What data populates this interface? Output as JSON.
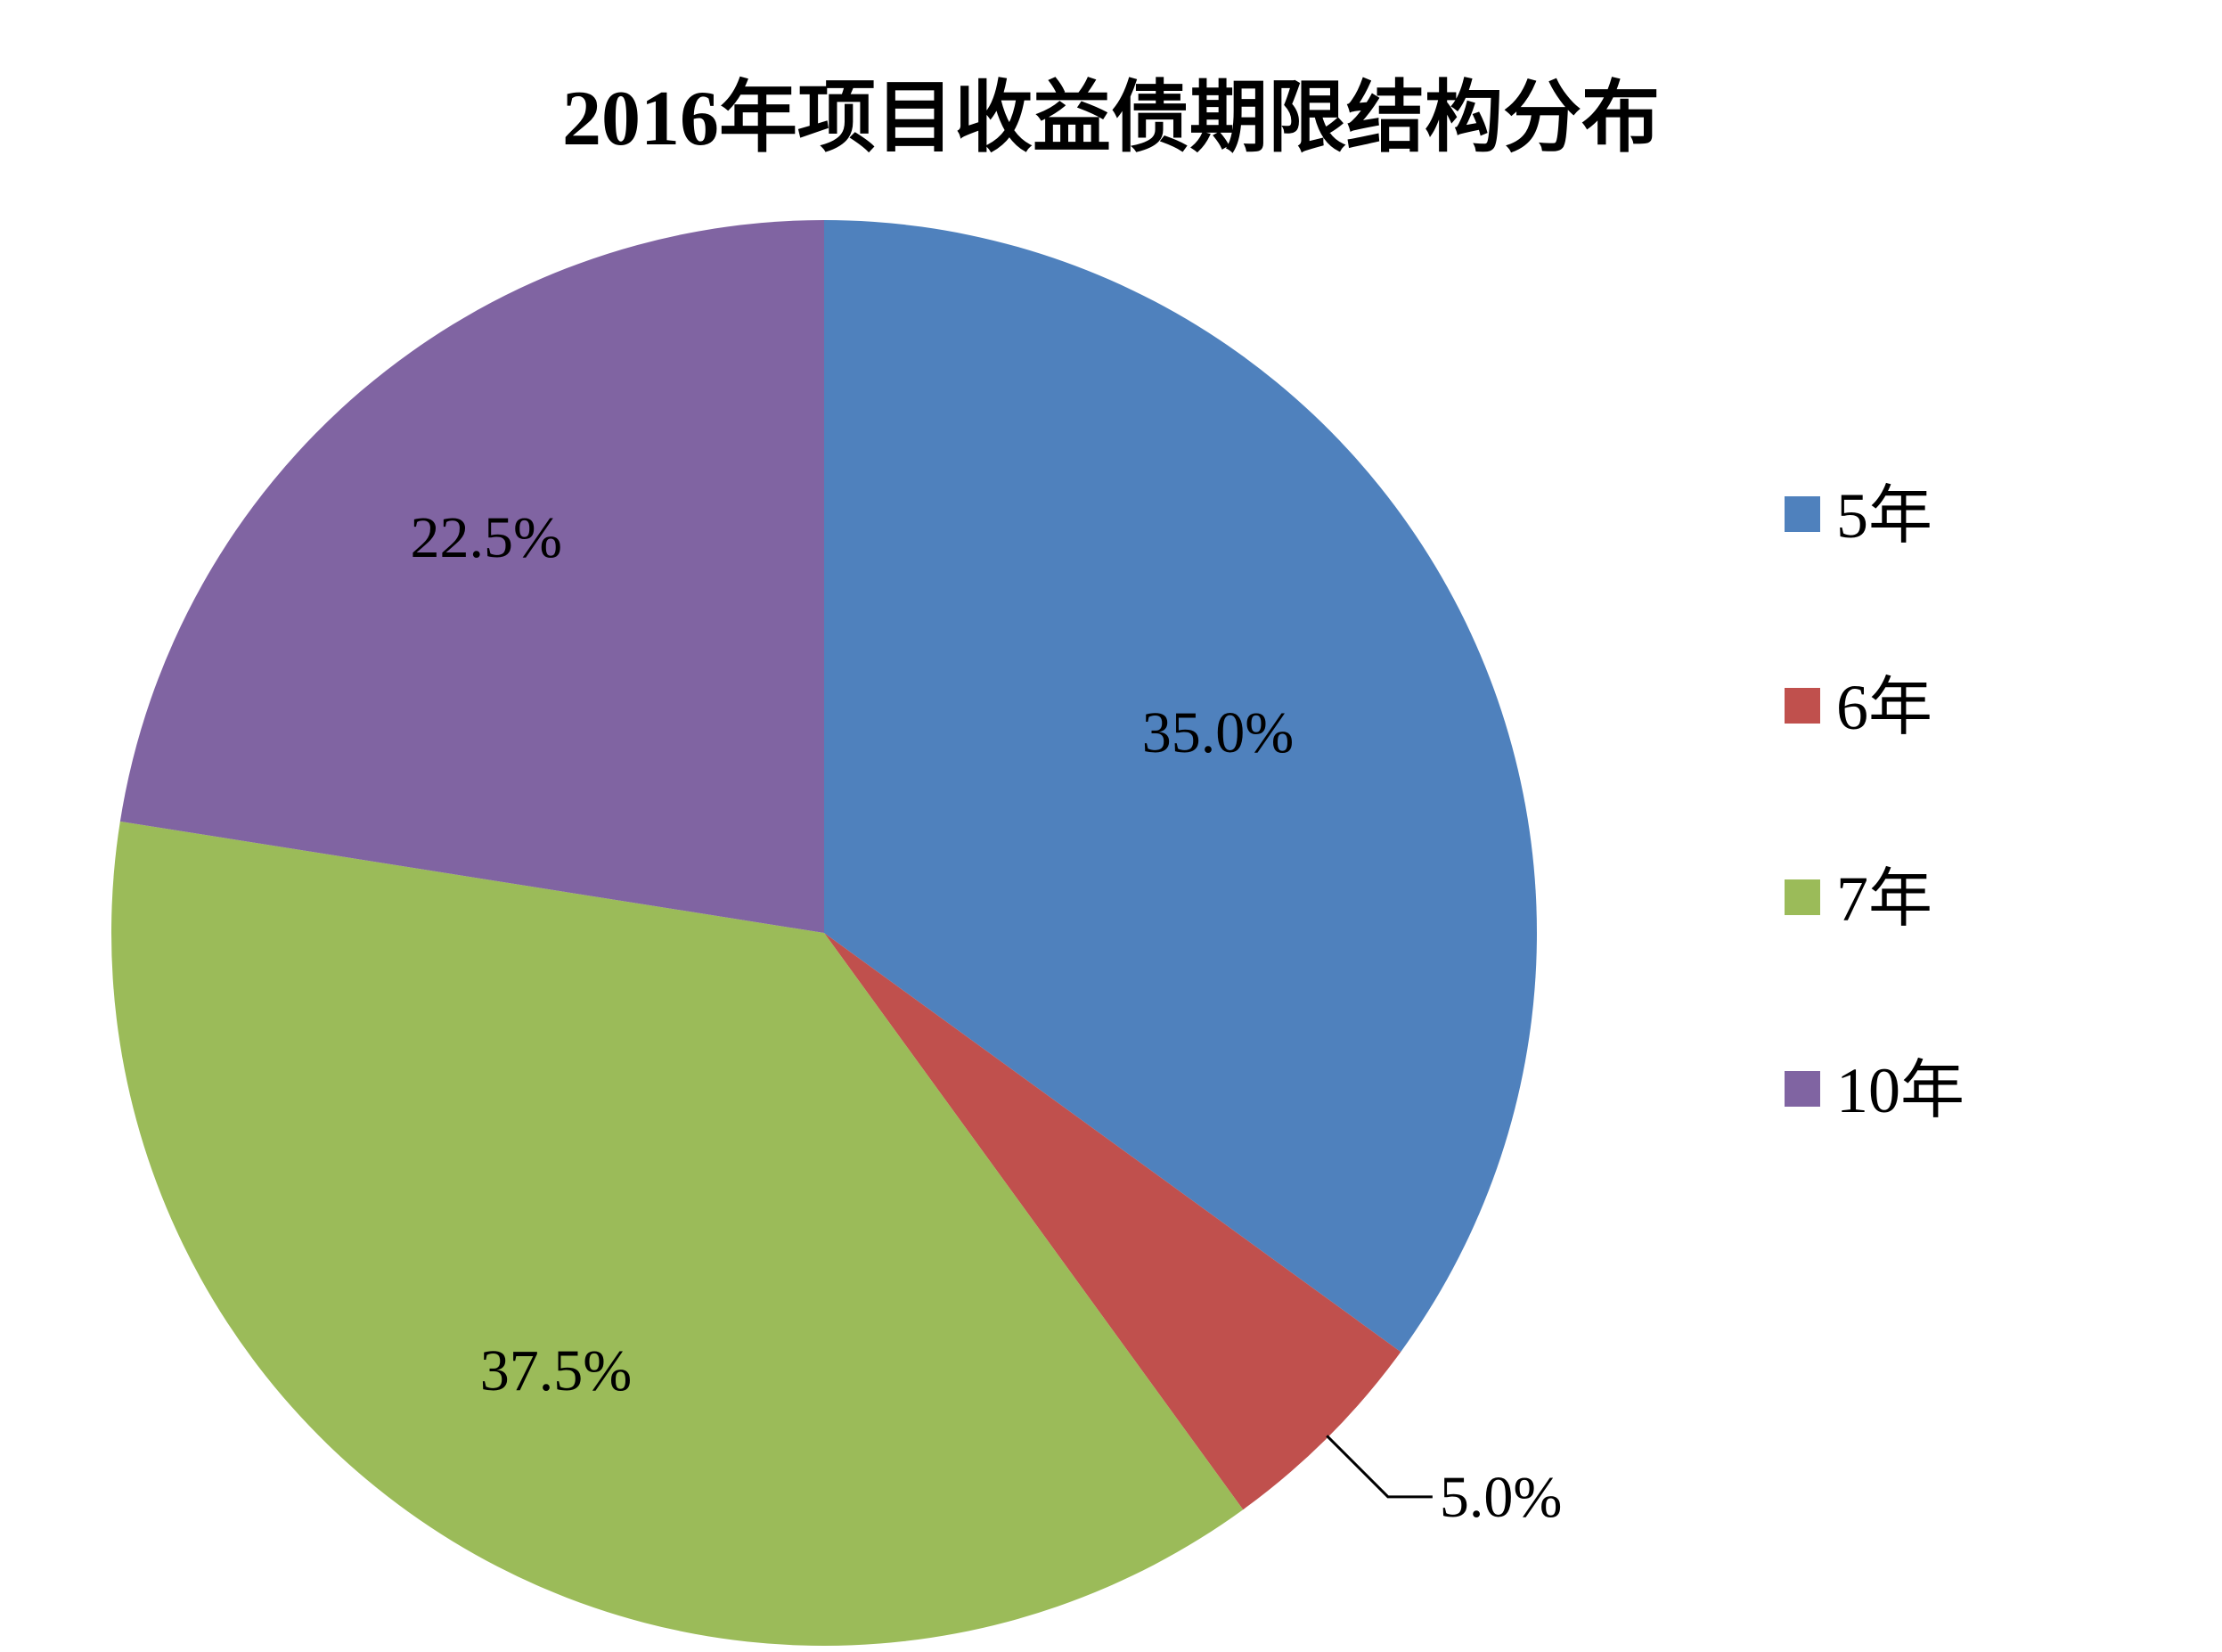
{
  "chart_data": {
    "type": "pie",
    "title": "2016年项目收益债期限结构分布",
    "categories": [
      "5年",
      "6年",
      "7年",
      "10年"
    ],
    "values": [
      35.0,
      5.0,
      37.5,
      22.5
    ],
    "value_labels": [
      "35.0%",
      "5.0%",
      "37.5%",
      "22.5%"
    ],
    "unit": "%",
    "start_angle": "12 o'clock",
    "direction": "clockwise",
    "legend_position": "right",
    "colors": [
      "#4F81BD",
      "#C0504D",
      "#9BBB59",
      "#8064A2"
    ]
  }
}
